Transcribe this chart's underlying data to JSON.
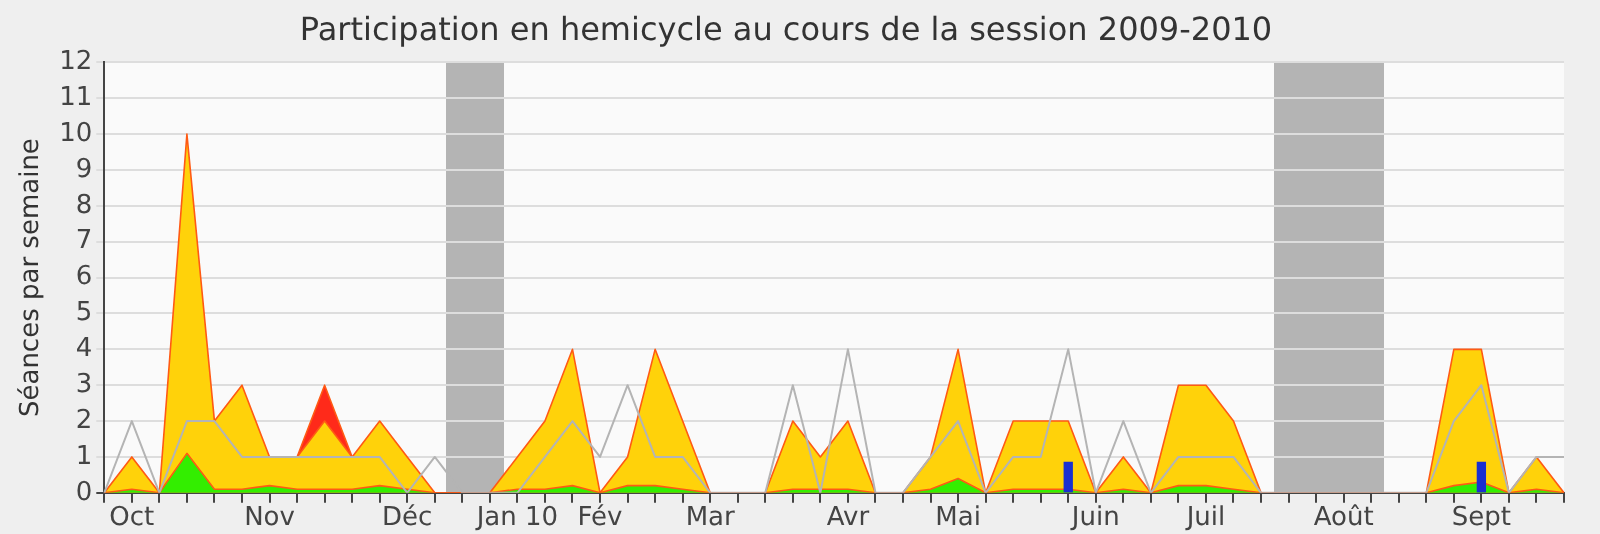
{
  "chart_data": {
    "type": "area",
    "title": "Participation en hemicycle au cours de la session 2009-2010",
    "ylabel": "Séances par semaine",
    "categories": [
      null,
      "Oct",
      null,
      null,
      null,
      null,
      "Nov",
      null,
      null,
      null,
      null,
      "Déc",
      null,
      null,
      null,
      "Jan 10",
      null,
      null,
      "Fév",
      null,
      null,
      null,
      "Mar",
      null,
      null,
      null,
      null,
      "Avr",
      null,
      null,
      null,
      "Mai",
      null,
      null,
      null,
      null,
      "Juin",
      null,
      null,
      null,
      "Juil",
      null,
      null,
      null,
      null,
      "Août",
      null,
      null,
      null,
      null,
      "Sept",
      null,
      null,
      null
    ],
    "series": [
      {
        "type": "bar",
        "color": "#1a2fd0",
        "values": [
          null,
          null,
          null,
          null,
          null,
          null,
          null,
          null,
          null,
          null,
          null,
          null,
          null,
          null,
          null,
          null,
          null,
          null,
          null,
          null,
          null,
          null,
          null,
          null,
          null,
          null,
          null,
          null,
          null,
          null,
          null,
          null,
          null,
          null,
          null,
          0.85,
          null,
          null,
          null,
          null,
          null,
          null,
          null,
          null,
          null,
          null,
          null,
          null,
          null,
          null,
          0.85,
          null,
          null,
          null
        ]
      },
      {
        "type": "line",
        "color": "#b4b4b4",
        "values": [
          0,
          2,
          0,
          2,
          2,
          1,
          1,
          1,
          1,
          1,
          1,
          0,
          1,
          0,
          0,
          0,
          1,
          2,
          1,
          3,
          1,
          1,
          0,
          0,
          0,
          3,
          0,
          4,
          0,
          0,
          1,
          2,
          0,
          1,
          1,
          4,
          0,
          2,
          0,
          1,
          1,
          1,
          0,
          0,
          0,
          0,
          0,
          0,
          0,
          2,
          3,
          0,
          1,
          1
        ]
      },
      {
        "color": "#33ee00",
        "values": [
          0,
          0.1,
          0,
          1.1,
          0.1,
          0.1,
          0.2,
          0.1,
          0.1,
          0.1,
          0.2,
          0.1,
          0,
          0,
          0,
          0.1,
          0.1,
          0.2,
          0,
          0.2,
          0.2,
          0.1,
          0,
          0,
          0,
          0.1,
          0.1,
          0.1,
          0,
          0,
          0.1,
          0.4,
          0,
          0.1,
          0.1,
          0.1,
          0,
          0.1,
          0,
          0.2,
          0.2,
          0.1,
          0,
          0,
          0,
          0,
          0,
          0,
          0,
          0.2,
          0.3,
          0,
          0.1,
          0
        ]
      },
      {
        "color": "#ffd20a",
        "values": [
          0,
          1,
          0,
          10,
          2,
          3,
          1,
          1,
          2,
          1,
          2,
          1,
          0,
          0,
          0,
          1,
          2,
          4,
          0,
          1,
          4,
          2,
          0,
          0,
          0,
          2,
          1,
          2,
          0,
          0,
          1,
          4,
          0,
          2,
          2,
          2,
          0,
          1,
          0,
          3,
          3,
          2,
          0,
          0,
          0,
          0,
          0,
          0,
          0,
          4,
          4,
          0,
          1,
          0
        ]
      },
      {
        "color": "#ff2a1a",
        "values": [
          null,
          null,
          null,
          null,
          null,
          null,
          null,
          1,
          3,
          1,
          null,
          null,
          null,
          null,
          null,
          null,
          null,
          null,
          null,
          null,
          null,
          null,
          null,
          null,
          null,
          null,
          null,
          null,
          null,
          null,
          null,
          null,
          null,
          null,
          null,
          null,
          null,
          null,
          null,
          null,
          null,
          null,
          null,
          null,
          null,
          null,
          null,
          null,
          null,
          null,
          null,
          null,
          null,
          null
        ]
      }
    ],
    "ylim": [
      0,
      12
    ],
    "yticks": [
      0,
      1,
      2,
      3,
      4,
      5,
      6,
      7,
      8,
      9,
      10,
      11,
      12
    ],
    "grid": "y",
    "legend": false
  }
}
